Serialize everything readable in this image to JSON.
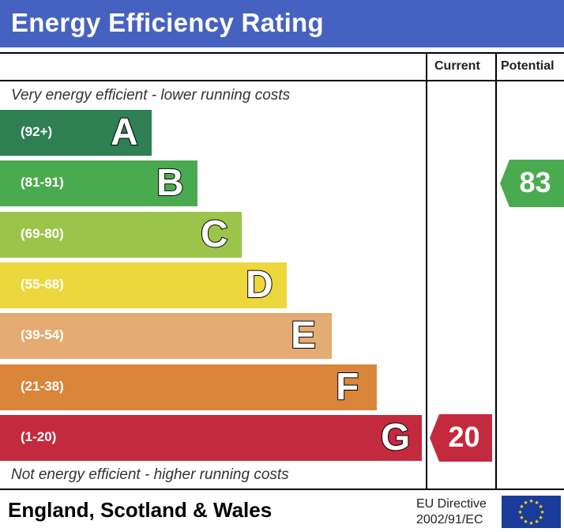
{
  "chart_data": {
    "type": "bar",
    "title": "Energy Efficiency Rating",
    "columns": [
      "Current",
      "Potential"
    ],
    "top_caption": "Very energy efficient - lower running costs",
    "bottom_caption": "Not energy efficient - higher running costs",
    "bands": [
      {
        "letter": "A",
        "range": "(92+)",
        "color": "#2e7f52"
      },
      {
        "letter": "B",
        "range": "(81-91)",
        "color": "#4aaa4f"
      },
      {
        "letter": "C",
        "range": "(69-80)",
        "color": "#9bc54a"
      },
      {
        "letter": "D",
        "range": "(55-68)",
        "color": "#ecd73d"
      },
      {
        "letter": "E",
        "range": "(39-54)",
        "color": "#e5ab72"
      },
      {
        "letter": "F",
        "range": "(21-38)",
        "color": "#d9853a"
      },
      {
        "letter": "G",
        "range": "(1-20)",
        "color": "#c42a3e"
      }
    ],
    "current": {
      "value": 20,
      "label": "20",
      "band": "G",
      "color": "#c42a3e"
    },
    "potential": {
      "value": 83,
      "label": "83",
      "band": "B",
      "color": "#4aaa4f"
    }
  },
  "footer": {
    "region": "England, Scotland & Wales",
    "directive_line1": "EU Directive",
    "directive_line2": "2002/91/EC",
    "flag_icon": "eu-flag-icon"
  }
}
